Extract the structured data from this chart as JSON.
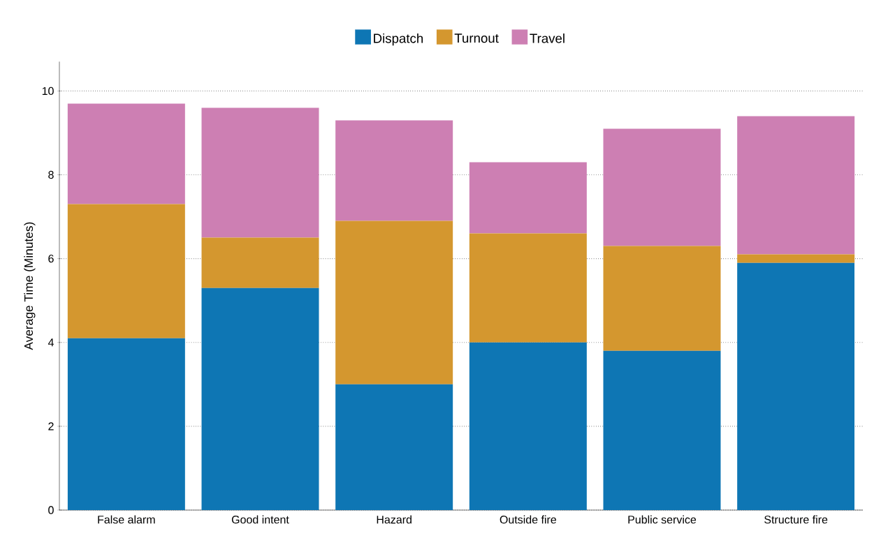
{
  "chart_data": {
    "type": "bar",
    "stacked": true,
    "ylabel": "Average Time (Minutes)",
    "categories": [
      "False alarm",
      "Good intent",
      "Hazard",
      "Outside fire",
      "Public service",
      "Structure fire"
    ],
    "series": [
      {
        "name": "Dispatch",
        "color": "#0e76b4",
        "values": [
          4.1,
          5.3,
          3.0,
          4.0,
          3.8,
          5.9
        ]
      },
      {
        "name": "Turnout",
        "color": "#d4972f",
        "values": [
          3.2,
          1.2,
          3.9,
          2.6,
          2.5,
          0.2
        ]
      },
      {
        "name": "Travel",
        "color": "#cd7fb3",
        "values": [
          2.4,
          3.1,
          2.4,
          1.7,
          2.8,
          3.3
        ]
      }
    ],
    "ylim": [
      0,
      10.7
    ],
    "yticks": [
      0,
      2,
      4,
      6,
      8,
      10
    ],
    "grid": "y",
    "legend": "top"
  }
}
